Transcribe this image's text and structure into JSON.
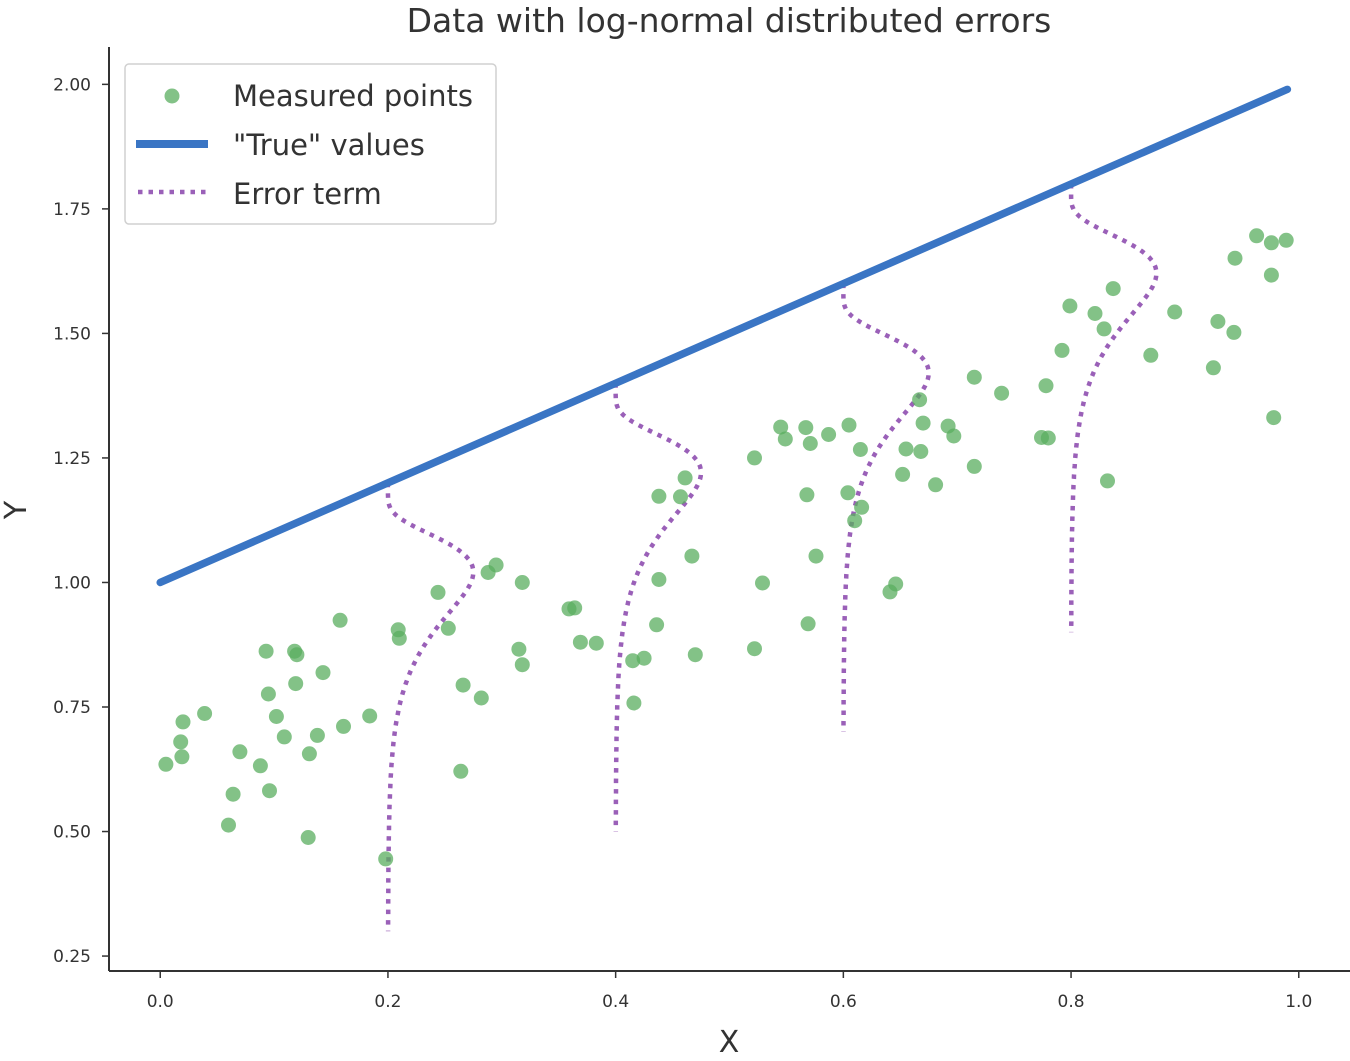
{
  "chart_data": {
    "type": "scatter",
    "title": "Data with log-normal distributed errors",
    "xlabel": "X",
    "ylabel": "Y",
    "xlim": [
      -0.045,
      1.045
    ],
    "ylim": [
      0.22,
      2.075
    ],
    "x_ticks": [
      {
        "value": 0.0,
        "label": "0.0"
      },
      {
        "value": 0.2,
        "label": "0.2"
      },
      {
        "value": 0.4,
        "label": "0.4"
      },
      {
        "value": 0.6,
        "label": "0.6"
      },
      {
        "value": 0.8,
        "label": "0.8"
      },
      {
        "value": 1.0,
        "label": "1.0"
      }
    ],
    "y_ticks": [
      {
        "value": 0.25,
        "label": "0.25"
      },
      {
        "value": 0.5,
        "label": "0.50"
      },
      {
        "value": 0.75,
        "label": "0.75"
      },
      {
        "value": 1.0,
        "label": "1.00"
      },
      {
        "value": 1.25,
        "label": "1.25"
      },
      {
        "value": 1.5,
        "label": "1.50"
      },
      {
        "value": 1.75,
        "label": "1.75"
      },
      {
        "value": 2.0,
        "label": "2.00"
      }
    ],
    "grid": false,
    "legend_position": "top-left",
    "colors": {
      "points": "#5aad5f",
      "true_line": "#3a75c4",
      "error": "#9a60b8",
      "axis": "#333333"
    },
    "series": [
      {
        "name": "Measured points",
        "type": "scatter",
        "points": [
          [
            0.005,
            0.635
          ],
          [
            0.018,
            0.68
          ],
          [
            0.019,
            0.65
          ],
          [
            0.02,
            0.72
          ],
          [
            0.039,
            0.737
          ],
          [
            0.06,
            0.513
          ],
          [
            0.064,
            0.575
          ],
          [
            0.07,
            0.66
          ],
          [
            0.088,
            0.632
          ],
          [
            0.093,
            0.862
          ],
          [
            0.095,
            0.776
          ],
          [
            0.096,
            0.582
          ],
          [
            0.102,
            0.731
          ],
          [
            0.109,
            0.69
          ],
          [
            0.118,
            0.862
          ],
          [
            0.12,
            0.855
          ],
          [
            0.119,
            0.797
          ],
          [
            0.131,
            0.656
          ],
          [
            0.13,
            0.488
          ],
          [
            0.138,
            0.693
          ],
          [
            0.143,
            0.819
          ],
          [
            0.158,
            0.924
          ],
          [
            0.161,
            0.711
          ],
          [
            0.184,
            0.732
          ],
          [
            0.198,
            0.445
          ],
          [
            0.209,
            0.905
          ],
          [
            0.21,
            0.888
          ],
          [
            0.244,
            0.98
          ],
          [
            0.253,
            0.908
          ],
          [
            0.264,
            0.621
          ],
          [
            0.266,
            0.794
          ],
          [
            0.282,
            0.768
          ],
          [
            0.288,
            1.02
          ],
          [
            0.295,
            1.035
          ],
          [
            0.315,
            0.866
          ],
          [
            0.318,
            0.835
          ],
          [
            0.318,
            1.0
          ],
          [
            0.359,
            0.947
          ],
          [
            0.364,
            0.949
          ],
          [
            0.369,
            0.88
          ],
          [
            0.383,
            0.878
          ],
          [
            0.415,
            0.843
          ],
          [
            0.416,
            0.758
          ],
          [
            0.425,
            0.848
          ],
          [
            0.436,
            0.915
          ],
          [
            0.438,
            1.006
          ],
          [
            0.438,
            1.173
          ],
          [
            0.457,
            1.172
          ],
          [
            0.461,
            1.21
          ],
          [
            0.467,
            1.053
          ],
          [
            0.47,
            0.855
          ],
          [
            0.522,
            1.25
          ],
          [
            0.522,
            0.867
          ],
          [
            0.529,
            0.999
          ],
          [
            0.545,
            1.312
          ],
          [
            0.549,
            1.288
          ],
          [
            0.567,
            1.311
          ],
          [
            0.568,
            1.176
          ],
          [
            0.569,
            0.917
          ],
          [
            0.571,
            1.279
          ],
          [
            0.576,
            1.053
          ],
          [
            0.587,
            1.297
          ],
          [
            0.604,
            1.18
          ],
          [
            0.605,
            1.316
          ],
          [
            0.61,
            1.124
          ],
          [
            0.615,
            1.267
          ],
          [
            0.616,
            1.151
          ],
          [
            0.641,
            0.981
          ],
          [
            0.646,
            0.997
          ],
          [
            0.652,
            1.217
          ],
          [
            0.655,
            1.268
          ],
          [
            0.667,
            1.367
          ],
          [
            0.668,
            1.263
          ],
          [
            0.67,
            1.32
          ],
          [
            0.681,
            1.196
          ],
          [
            0.692,
            1.314
          ],
          [
            0.697,
            1.294
          ],
          [
            0.715,
            1.412
          ],
          [
            0.715,
            1.233
          ],
          [
            0.739,
            1.38
          ],
          [
            0.774,
            1.291
          ],
          [
            0.778,
            1.395
          ],
          [
            0.78,
            1.29
          ],
          [
            0.792,
            1.466
          ],
          [
            0.799,
            1.555
          ],
          [
            0.821,
            1.54
          ],
          [
            0.829,
            1.509
          ],
          [
            0.832,
            1.204
          ],
          [
            0.837,
            1.59
          ],
          [
            0.87,
            1.456
          ],
          [
            0.891,
            1.543
          ],
          [
            0.925,
            1.431
          ],
          [
            0.929,
            1.524
          ],
          [
            0.943,
            1.502
          ],
          [
            0.944,
            1.651
          ],
          [
            0.963,
            1.696
          ],
          [
            0.976,
            1.682
          ],
          [
            0.976,
            1.617
          ],
          [
            0.978,
            1.331
          ],
          [
            0.989,
            1.687
          ]
        ]
      },
      {
        "name": "\"True\" values",
        "type": "line",
        "x": [
          0.0,
          0.99
        ],
        "y": [
          1.0,
          1.99
        ]
      },
      {
        "name": "Error term",
        "type": "line",
        "curves": [
          {
            "x0": 0.2,
            "y_top": 1.2,
            "y_bottom": 0.3,
            "max_offset": 0.075
          },
          {
            "x0": 0.4,
            "y_top": 1.4,
            "y_bottom": 0.5,
            "max_offset": 0.075
          },
          {
            "x0": 0.6,
            "y_top": 1.6,
            "y_bottom": 0.7,
            "max_offset": 0.075
          },
          {
            "x0": 0.8,
            "y_top": 1.8,
            "y_bottom": 0.9,
            "max_offset": 0.075
          }
        ]
      }
    ]
  }
}
